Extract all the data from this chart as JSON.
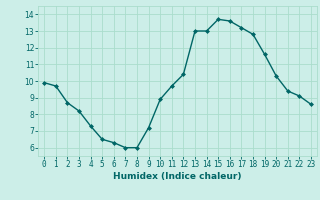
{
  "x": [
    0,
    1,
    2,
    3,
    4,
    5,
    6,
    7,
    8,
    9,
    10,
    11,
    12,
    13,
    14,
    15,
    16,
    17,
    18,
    19,
    20,
    21,
    22,
    23
  ],
  "y": [
    9.9,
    9.7,
    8.7,
    8.2,
    7.3,
    6.5,
    6.3,
    6.0,
    6.0,
    7.2,
    8.9,
    9.7,
    10.4,
    13.0,
    13.0,
    13.7,
    13.6,
    13.2,
    12.8,
    11.6,
    10.3,
    9.4,
    9.1,
    8.6
  ],
  "line_color": "#006666",
  "marker": "D",
  "marker_size": 2,
  "xlabel": "Humidex (Indice chaleur)",
  "xlim": [
    -0.5,
    23.5
  ],
  "ylim": [
    5.5,
    14.5
  ],
  "yticks": [
    6,
    7,
    8,
    9,
    10,
    11,
    12,
    13,
    14
  ],
  "xticks": [
    0,
    1,
    2,
    3,
    4,
    5,
    6,
    7,
    8,
    9,
    10,
    11,
    12,
    13,
    14,
    15,
    16,
    17,
    18,
    19,
    20,
    21,
    22,
    23
  ],
  "bg_color": "#cceee8",
  "grid_color": "#aaddcc",
  "tick_color": "#006666",
  "xlabel_fontsize": 6.5,
  "tick_fontsize": 5.5
}
